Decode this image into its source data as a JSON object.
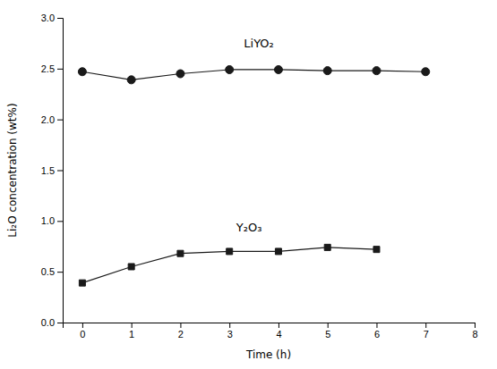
{
  "chart_data": {
    "type": "line",
    "x_label": "Time (h)",
    "y_label": "Li₂O concentration (wt%)",
    "x": [
      0,
      1,
      2,
      3,
      4,
      5,
      6,
      7
    ],
    "series": [
      {
        "color": "#1a1a1a",
        "marker": "circle",
        "line_style": "solid",
        "values": [
          2.47,
          2.39,
          2.45,
          2.49,
          2.49,
          2.48,
          2.48,
          2.47
        ]
      },
      {
        "color": "#1a1a1a",
        "marker": "square",
        "line_style": "solid",
        "values": [
          0.39,
          0.55,
          0.68,
          0.7,
          0.7,
          0.74,
          0.72,
          null
        ]
      }
    ],
    "annotations": [
      {
        "text": "LiYO₂",
        "x": 3.6,
        "y": 2.74
      },
      {
        "text": "Y₂O₃",
        "x": 3.4,
        "y": 0.93
      }
    ],
    "xlim": [
      -0.4,
      8.0
    ],
    "ylim": [
      0.0,
      3.0
    ],
    "xticks": [
      0,
      1,
      2,
      3,
      4,
      5,
      6,
      7,
      8
    ],
    "yticks": [
      {
        "value": 0.0,
        "label": "0.0"
      },
      0.5,
      {
        "value": 1.0,
        "label": "1.0"
      },
      1.5,
      {
        "value": 2.0,
        "label": "2.0"
      },
      2.5,
      {
        "value": 3.0,
        "label": "3.0"
      }
    ],
    "grid": false
  }
}
